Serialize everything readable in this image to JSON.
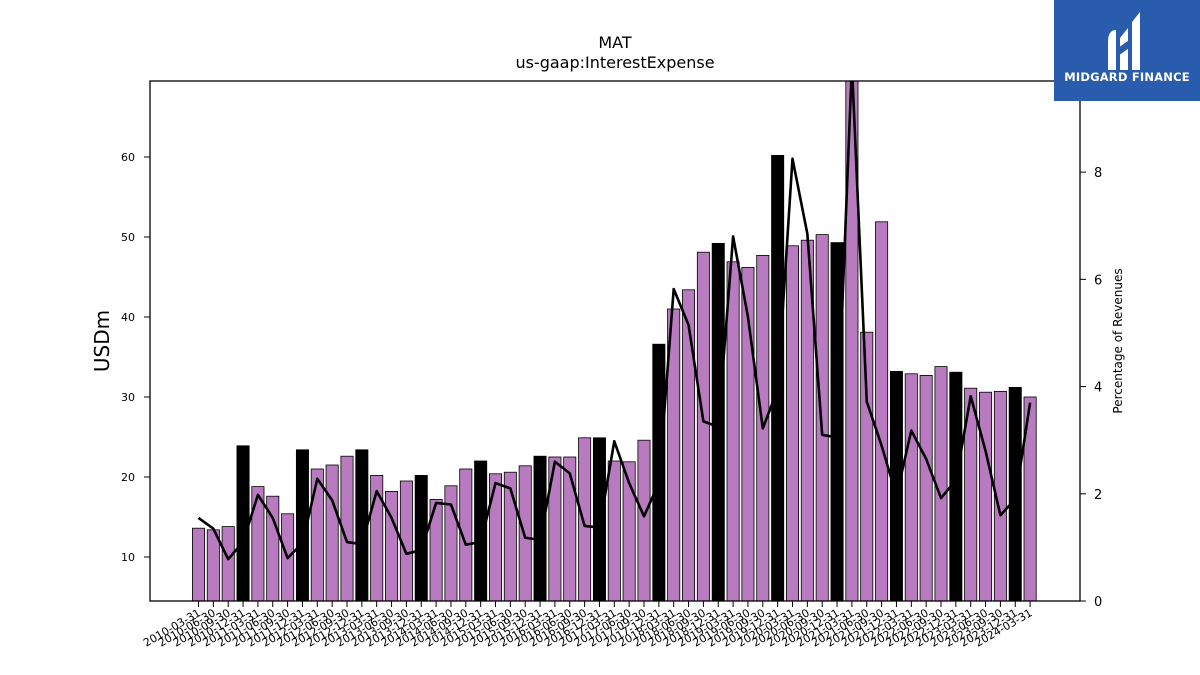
{
  "chart_data": {
    "type": "bar",
    "title": "MAT",
    "subtitle": "us-gaap:InterestExpense",
    "ylabel": "USDm",
    "y2label": "Percentage of Revenues",
    "ylim": [
      4.5,
      69.5
    ],
    "y2lim": [
      0,
      9.7
    ],
    "yticks": [
      10,
      20,
      30,
      40,
      50,
      60
    ],
    "y2ticks": [
      0,
      2,
      4,
      6,
      8
    ],
    "grid": false,
    "colors": {
      "quarter": "#b87bbf",
      "annual": "#000000",
      "line": "#000000",
      "edge": "#000000"
    },
    "categories": [
      "2010-03-31",
      "2010-06-30",
      "2010-09-30",
      "2010-12-31",
      "2011-03-31",
      "2011-06-30",
      "2011-09-30",
      "2011-12-31",
      "2012-03-31",
      "2012-06-30",
      "2012-09-30",
      "2012-12-31",
      "2013-03-31",
      "2013-06-30",
      "2013-09-30",
      "2013-12-31",
      "2014-03-31",
      "2014-06-30",
      "2014-09-30",
      "2014-12-31",
      "2015-03-31",
      "2015-06-30",
      "2015-09-30",
      "2015-12-31",
      "2016-03-31",
      "2016-06-30",
      "2016-09-30",
      "2016-12-31",
      "2017-03-31",
      "2017-06-30",
      "2017-09-30",
      "2017-12-31",
      "2018-03-31",
      "2018-06-30",
      "2018-09-30",
      "2018-12-31",
      "2019-03-31",
      "2019-06-30",
      "2019-09-30",
      "2019-12-31",
      "2020-03-31",
      "2020-06-30",
      "2020-09-30",
      "2020-12-31",
      "2021-03-31",
      "2021-06-30",
      "2021-09-30",
      "2021-12-31",
      "2022-03-31",
      "2022-06-30",
      "2022-09-30",
      "2022-12-31",
      "2023-03-31",
      "2023-06-30",
      "2023-09-30",
      "2023-12-31",
      "2024-03-31"
    ],
    "series": [
      {
        "name": "Interest Expense",
        "values": [
          13.6,
          13.4,
          13.8,
          23.9,
          18.8,
          17.6,
          15.4,
          23.4,
          21.0,
          21.5,
          22.6,
          23.4,
          20.2,
          18.2,
          19.5,
          20.2,
          17.2,
          18.9,
          21.0,
          22.0,
          20.4,
          20.6,
          21.4,
          22.6,
          22.5,
          22.5,
          24.9,
          24.9,
          22.0,
          21.9,
          24.6,
          36.6,
          41.0,
          43.4,
          48.1,
          49.2,
          46.9,
          46.2,
          47.7,
          60.2,
          48.9,
          49.6,
          50.3,
          49.3,
          70.0,
          38.1,
          51.9,
          33.2,
          32.9,
          32.7,
          33.8,
          33.1,
          31.1,
          30.6,
          30.7,
          31.2,
          30.0
        ],
        "annual": [
          false,
          false,
          false,
          true,
          false,
          false,
          false,
          true,
          false,
          false,
          false,
          true,
          false,
          false,
          false,
          true,
          false,
          false,
          false,
          true,
          false,
          false,
          false,
          true,
          false,
          false,
          false,
          true,
          false,
          false,
          false,
          true,
          false,
          false,
          false,
          true,
          false,
          false,
          false,
          true,
          false,
          false,
          false,
          true,
          false,
          false,
          false,
          true,
          false,
          false,
          false,
          true,
          false,
          false,
          false,
          true,
          false
        ]
      },
      {
        "name": "Percentage of Revenues",
        "axis": "right",
        "values": [
          1.55,
          1.35,
          0.78,
          1.1,
          1.98,
          1.55,
          0.8,
          1.08,
          2.28,
          1.88,
          1.1,
          1.06,
          2.05,
          1.55,
          0.88,
          0.95,
          1.83,
          1.8,
          1.05,
          1.1,
          2.2,
          2.1,
          1.18,
          1.14,
          2.6,
          2.38,
          1.4,
          1.37,
          2.98,
          2.2,
          1.58,
          2.2,
          5.82,
          5.15,
          3.35,
          3.25,
          6.8,
          5.3,
          3.22,
          3.95,
          8.25,
          6.85,
          3.1,
          3.05,
          10.0,
          3.72,
          2.9,
          1.96,
          3.18,
          2.65,
          1.92,
          2.25,
          3.82,
          2.8,
          1.6,
          1.9,
          3.7
        ]
      }
    ]
  },
  "logo": {
    "brand": "MIDGARD FINANCE"
  }
}
